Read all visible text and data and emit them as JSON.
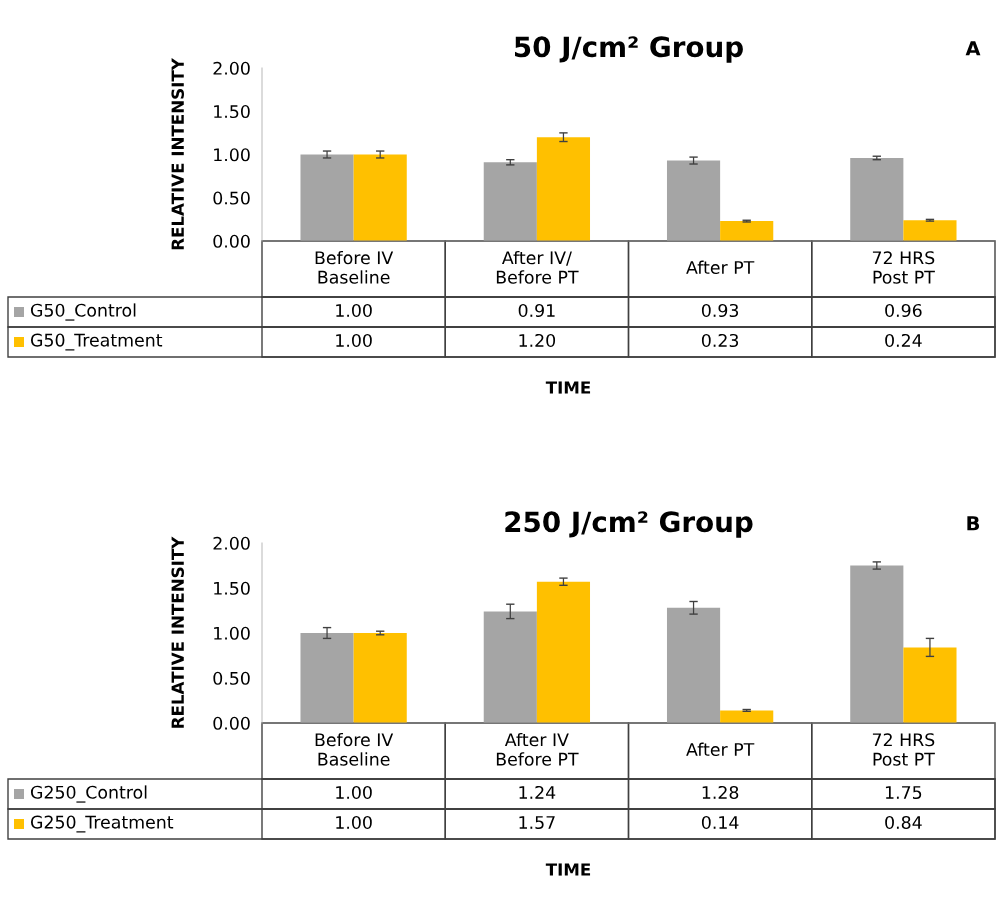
{
  "chart_data": [
    {
      "type": "bar",
      "title": "50 J/cm² Group",
      "xlabel": "TIME",
      "ylabel": "RELATIVE INTENSITY",
      "annotations": [
        "A"
      ],
      "categories": [
        "Before IV\nBaseline",
        "After IV/\nBefore PT",
        "After PT",
        "72 HRS\nPost PT"
      ],
      "series": [
        {
          "name": "G50_Control",
          "color": "#a5a5a5",
          "values": [
            1.0,
            0.91,
            0.93,
            0.96
          ],
          "errors": [
            0.04,
            0.03,
            0.04,
            0.02
          ],
          "value_labels": [
            "1.00",
            "0.91",
            "0.93",
            "0.96"
          ]
        },
        {
          "name": "G50_Treatment",
          "color": "#ffc000",
          "values": [
            1.0,
            1.2,
            0.23,
            0.24
          ],
          "errors": [
            0.04,
            0.05,
            0.01,
            0.01
          ],
          "value_labels": [
            "1.00",
            "1.20",
            "0.23",
            "0.24"
          ]
        }
      ],
      "ylim": [
        0,
        2
      ],
      "yticks": [
        {
          "value": 0,
          "label": "0.00"
        },
        {
          "value": 0.5,
          "label": "0.50"
        },
        {
          "value": 1,
          "label": "1.00"
        },
        {
          "value": 1.5,
          "label": "1.50"
        },
        {
          "value": 2,
          "label": "2.00"
        }
      ],
      "grid": false,
      "legend": "bottom"
    },
    {
      "type": "bar",
      "title": "250 J/cm² Group",
      "xlabel": "TIME",
      "ylabel": "RELATIVE INTENSITY",
      "annotations": [
        "B"
      ],
      "categories": [
        "Before IV\nBaseline",
        "After IV\nBefore PT",
        "After PT",
        "72 HRS\nPost PT"
      ],
      "series": [
        {
          "name": "G250_Control",
          "color": "#a5a5a5",
          "values": [
            1.0,
            1.24,
            1.28,
            1.75
          ],
          "errors": [
            0.06,
            0.08,
            0.07,
            0.04
          ],
          "value_labels": [
            "1.00",
            "1.24",
            "1.28",
            "1.75"
          ]
        },
        {
          "name": "G250_Treatment",
          "color": "#ffc000",
          "values": [
            1.0,
            1.57,
            0.14,
            0.84
          ],
          "errors": [
            0.02,
            0.04,
            0.01,
            0.1
          ],
          "value_labels": [
            "1.00",
            "1.57",
            "0.14",
            "0.84"
          ]
        }
      ],
      "ylim": [
        0,
        2
      ],
      "yticks": [
        {
          "value": 0,
          "label": "0.00"
        },
        {
          "value": 0.5,
          "label": "0.50"
        },
        {
          "value": 1,
          "label": "1.00"
        },
        {
          "value": 1.5,
          "label": "1.50"
        },
        {
          "value": 2,
          "label": "2.00"
        }
      ],
      "grid": false,
      "legend": "bottom"
    }
  ]
}
